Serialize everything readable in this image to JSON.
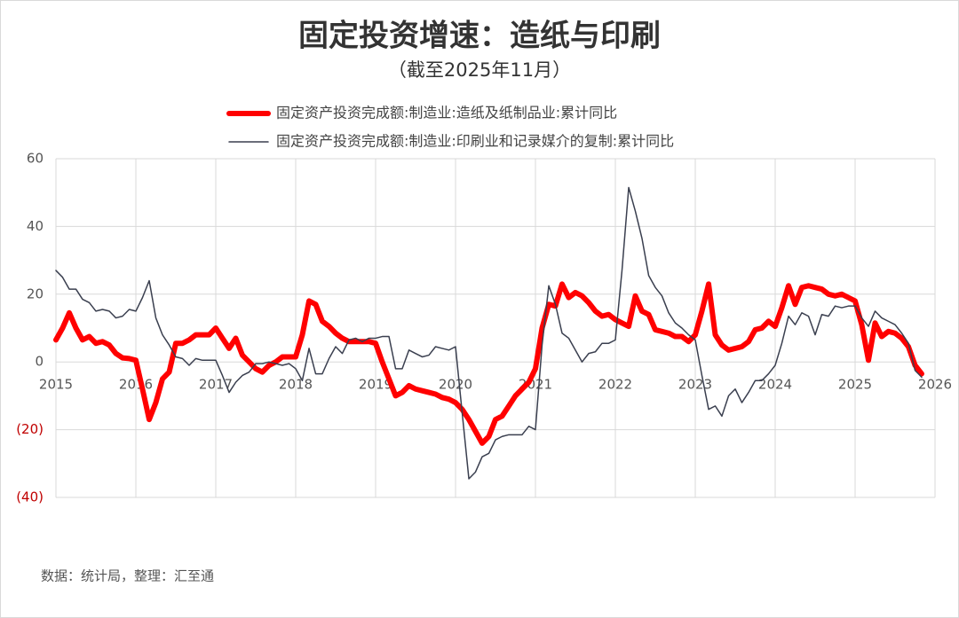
{
  "chart_data": {
    "type": "line",
    "title": "固定投资增速：造纸与印刷",
    "subtitle": "（截至2025年11月）",
    "source": "数据：统计局，整理：汇至通",
    "x": [
      2015,
      2015.083,
      2015.167,
      2015.25,
      2015.333,
      2015.417,
      2015.5,
      2015.583,
      2015.667,
      2015.75,
      2015.833,
      2015.917,
      2016,
      2016.083,
      2016.167,
      2016.25,
      2016.333,
      2016.417,
      2016.5,
      2016.583,
      2016.667,
      2016.75,
      2016.833,
      2016.917,
      2017,
      2017.083,
      2017.167,
      2017.25,
      2017.333,
      2017.417,
      2017.5,
      2017.583,
      2017.667,
      2017.75,
      2017.833,
      2017.917,
      2018,
      2018.083,
      2018.167,
      2018.25,
      2018.333,
      2018.417,
      2018.5,
      2018.583,
      2018.667,
      2018.75,
      2018.833,
      2018.917,
      2019,
      2019.083,
      2019.167,
      2019.25,
      2019.333,
      2019.417,
      2019.5,
      2019.583,
      2019.667,
      2019.75,
      2019.833,
      2019.917,
      2020,
      2020.083,
      2020.167,
      2020.25,
      2020.333,
      2020.417,
      2020.5,
      2020.583,
      2020.667,
      2020.75,
      2020.833,
      2020.917,
      2021,
      2021.083,
      2021.167,
      2021.25,
      2021.333,
      2021.417,
      2021.5,
      2021.583,
      2021.667,
      2021.75,
      2021.833,
      2021.917,
      2022,
      2022.083,
      2022.167,
      2022.25,
      2022.333,
      2022.417,
      2022.5,
      2022.583,
      2022.667,
      2022.75,
      2022.833,
      2022.917,
      2023,
      2023.083,
      2023.167,
      2023.25,
      2023.333,
      2023.417,
      2023.5,
      2023.583,
      2023.667,
      2023.75,
      2023.833,
      2023.917,
      2024,
      2024.083,
      2024.167,
      2024.25,
      2024.333,
      2024.417,
      2024.5,
      2024.583,
      2024.667,
      2024.75,
      2024.833,
      2024.917,
      2025,
      2025.083,
      2025.167,
      2025.25,
      2025.333,
      2025.417,
      2025.5,
      2025.583,
      2025.667,
      2025.75,
      2025.833
    ],
    "series": [
      {
        "name": "固定资产投资完成额:制造业:造纸及纸制品业:累计同比",
        "color": "#ff0000",
        "width": 6,
        "values": [
          6.5,
          10,
          14.5,
          10,
          6.5,
          7.5,
          5.5,
          6,
          5,
          2.5,
          1.2,
          1,
          0.5,
          -8,
          -17,
          -12,
          -5,
          -3,
          5.5,
          5.5,
          6.5,
          8,
          8,
          8,
          10,
          7,
          4,
          7,
          2,
          0,
          -2,
          -3,
          -1,
          0,
          1.5,
          1.5,
          1.5,
          8,
          18,
          17,
          12,
          10.5,
          8.5,
          7,
          6,
          6,
          6,
          6,
          5.5,
          0,
          -5,
          -10,
          -9,
          -7,
          -8,
          -8.5,
          -9,
          -9.5,
          -10.5,
          -11,
          -12,
          -14,
          -17,
          -20.5,
          -24,
          -22,
          -17,
          -16,
          -13,
          -10,
          -8,
          -6,
          -2,
          10,
          17,
          16.5,
          23,
          19,
          20.5,
          19.5,
          17.5,
          15,
          13.5,
          14,
          12.5,
          11.5,
          10.5,
          19.5,
          15,
          14,
          9.5,
          9,
          8.5,
          7.5,
          7.5,
          6,
          8,
          15,
          23,
          8,
          5,
          3.5,
          4,
          4.5,
          6,
          9.5,
          10,
          12,
          10.5,
          16,
          22.5,
          17,
          22,
          22.5,
          22,
          21.5,
          20,
          19.5,
          20,
          19,
          18,
          11,
          0.5,
          11.5,
          7.5,
          9,
          8.5,
          7,
          4.5,
          -1,
          -3.5
        ]
      },
      {
        "name": "固定资产投资完成额:制造业:印刷业和记录媒介的复制:累计同比",
        "color": "#3a3f4f",
        "width": 1.5,
        "values": [
          27,
          25,
          21.5,
          21.5,
          18.5,
          17.5,
          15,
          15.5,
          15,
          13,
          13.5,
          15.5,
          15,
          19,
          24,
          13,
          8,
          5,
          1.5,
          1,
          -1,
          1,
          0.5,
          0.5,
          0.5,
          -4,
          -9,
          -6,
          -4,
          -3,
          -0.5,
          -0.5,
          0,
          -0.5,
          -1,
          -0.5,
          -2,
          -5.5,
          4,
          -3.5,
          -3.5,
          1,
          4.5,
          2.5,
          6.5,
          7,
          6,
          7,
          7,
          7.5,
          7.5,
          -2,
          -2,
          3.5,
          2.5,
          1.5,
          2,
          4.5,
          4,
          3.5,
          4.5,
          -15,
          -34.5,
          -32.5,
          -28,
          -27,
          -23,
          -22,
          -21.5,
          -21.5,
          -21.5,
          -19,
          -20,
          5,
          22.5,
          17,
          8.5,
          7,
          3.5,
          0,
          2.5,
          3,
          5.5,
          5.5,
          6.5,
          27,
          51.5,
          44.5,
          36.5,
          25.5,
          22,
          19.5,
          14.5,
          11.5,
          10,
          8,
          6.5,
          -4,
          -14,
          -13,
          -16,
          -10,
          -8,
          -12,
          -9,
          -5.5,
          -5.5,
          -3.5,
          -1,
          5.5,
          13.5,
          11,
          14.5,
          13.5,
          8,
          14,
          13.5,
          16.5,
          16,
          16.5,
          16.5,
          13,
          10.5,
          15,
          13,
          12,
          11,
          8.5,
          5.5,
          -2.5,
          -4.5
        ]
      }
    ],
    "xlim": [
      2015,
      2026
    ],
    "xticks": [
      2015,
      2016,
      2017,
      2018,
      2019,
      2020,
      2021,
      2022,
      2023,
      2024,
      2025,
      2026
    ],
    "ylim": [
      -40,
      60
    ],
    "yticks": [
      60,
      40,
      20,
      0,
      {
        "value": -20,
        "label": "(20)"
      },
      {
        "value": -40,
        "label": "(40)"
      }
    ],
    "grid": true
  }
}
